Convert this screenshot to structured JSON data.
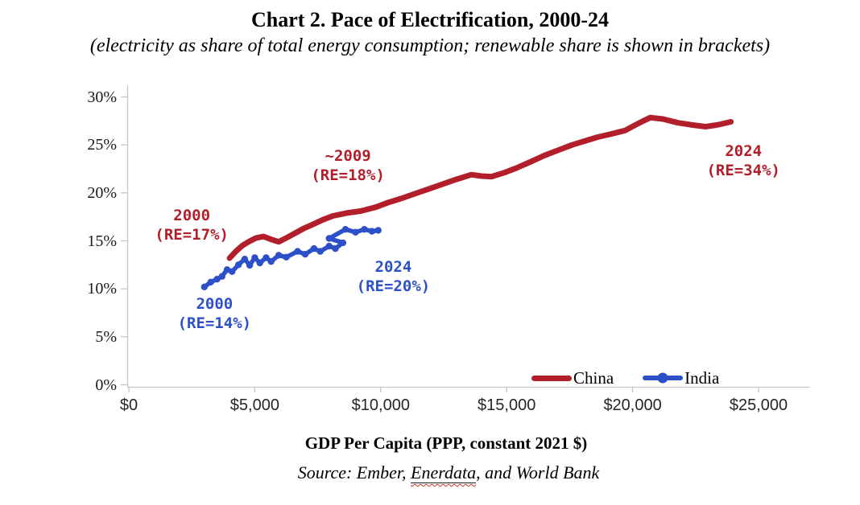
{
  "title": "Chart 2. Pace of Electrification, 2000-24",
  "subtitle": "(electricity as share of total energy consumption; renewable share is shown in brackets)",
  "source": {
    "prefix": "Source: Ember, ",
    "word": "Enerdata",
    "suffix": ", and World Bank"
  },
  "colors": {
    "china_red": "#B21F2A",
    "india_blue": "#2D50C8",
    "axis_gray": "#C6C6C6"
  },
  "chart_data": {
    "type": "line",
    "title": "Chart 2. Pace of Electrification, 2000-24",
    "xlabel": "GDP Per Capita (PPP, constant 2021 $)",
    "ylabel": "electricity as share of total energy consumption",
    "xlim": [
      0,
      27000
    ],
    "ylim": [
      0,
      30
    ],
    "grid": false,
    "legend_position": "inside-bottom-right",
    "x_axis": {
      "values": [
        0,
        5000,
        10000,
        15000,
        20000,
        25000
      ],
      "labels": [
        "$0",
        "$5,000",
        "$10,000",
        "$15,000",
        "$20,000",
        "$25,000"
      ]
    },
    "y_axis": {
      "values": [
        0,
        5,
        10,
        15,
        20,
        25,
        30
      ],
      "labels": [
        "0%",
        "5%",
        "10%",
        "15%",
        "20%",
        "25%",
        "30%"
      ]
    },
    "series": [
      {
        "name": "China",
        "color": "#B21F2A",
        "marker": false,
        "points": [
          [
            4000,
            13.2
          ],
          [
            4250,
            13.9
          ],
          [
            4500,
            14.5
          ],
          [
            4750,
            14.9
          ],
          [
            5050,
            15.3
          ],
          [
            5350,
            15.45
          ],
          [
            5650,
            15.15
          ],
          [
            5950,
            14.9
          ],
          [
            6250,
            15.3
          ],
          [
            6600,
            15.8
          ],
          [
            6950,
            16.3
          ],
          [
            7300,
            16.7
          ],
          [
            7700,
            17.2
          ],
          [
            8100,
            17.6
          ],
          [
            8650,
            17.9
          ],
          [
            9200,
            18.1
          ],
          [
            9800,
            18.5
          ],
          [
            10300,
            19.0
          ],
          [
            10800,
            19.4
          ],
          [
            11350,
            19.9
          ],
          [
            11900,
            20.4
          ],
          [
            12450,
            20.9
          ],
          [
            13000,
            21.4
          ],
          [
            13600,
            21.9
          ],
          [
            14000,
            21.75
          ],
          [
            14400,
            21.7
          ],
          [
            14900,
            22.1
          ],
          [
            15400,
            22.6
          ],
          [
            16000,
            23.3
          ],
          [
            16500,
            23.9
          ],
          [
            17100,
            24.5
          ],
          [
            17600,
            25.0
          ],
          [
            18100,
            25.4
          ],
          [
            18600,
            25.8
          ],
          [
            19100,
            26.1
          ],
          [
            19700,
            26.5
          ],
          [
            20200,
            27.2
          ],
          [
            20700,
            27.85
          ],
          [
            21200,
            27.7
          ],
          [
            21800,
            27.3
          ],
          [
            22300,
            27.1
          ],
          [
            22900,
            26.9
          ],
          [
            23400,
            27.1
          ],
          [
            23900,
            27.4
          ]
        ]
      },
      {
        "name": "India",
        "color": "#2D50C8",
        "marker": true,
        "points": [
          [
            3000,
            10.2
          ],
          [
            3250,
            10.7
          ],
          [
            3500,
            11.0
          ],
          [
            3700,
            11.3
          ],
          [
            3900,
            12.0
          ],
          [
            4100,
            11.8
          ],
          [
            4350,
            12.5
          ],
          [
            4600,
            13.1
          ],
          [
            4800,
            12.45
          ],
          [
            5000,
            13.25
          ],
          [
            5200,
            12.7
          ],
          [
            5450,
            13.25
          ],
          [
            5650,
            12.85
          ],
          [
            5950,
            13.5
          ],
          [
            6250,
            13.3
          ],
          [
            6700,
            13.9
          ],
          [
            7000,
            13.6
          ],
          [
            7350,
            14.2
          ],
          [
            7600,
            13.9
          ],
          [
            7950,
            14.45
          ],
          [
            8200,
            14.2
          ],
          [
            8500,
            14.8
          ],
          [
            7950,
            15.25
          ],
          [
            8600,
            16.2
          ],
          [
            9000,
            15.9
          ],
          [
            9350,
            16.2
          ],
          [
            9650,
            16.0
          ],
          [
            9900,
            16.1
          ]
        ]
      }
    ],
    "annotations": [
      {
        "lines": "2000\n(RE=17%)",
        "series": "China",
        "color": "#B21F2A",
        "x": 2500,
        "y": 16.65
      },
      {
        "lines": "~2009\n(RE=18%)",
        "series": "China",
        "color": "#B21F2A",
        "x": 8700,
        "y": 22.85
      },
      {
        "lines": "2024\n(RE=34%)",
        "series": "China",
        "color": "#B21F2A",
        "x": 24400,
        "y": 23.35
      },
      {
        "lines": "2000\n(RE=14%)",
        "series": "India",
        "color": "#2D50C8",
        "x": 3400,
        "y": 7.4
      },
      {
        "lines": "2024\n(RE=20%)",
        "series": "India",
        "color": "#2D50C8",
        "x": 10500,
        "y": 11.3
      }
    ]
  }
}
